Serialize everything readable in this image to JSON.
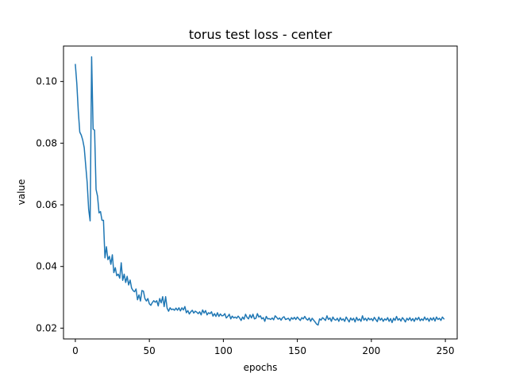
{
  "chart_data": {
    "type": "line",
    "title": "torus test loss - center",
    "xlabel": "epochs",
    "ylabel": "value",
    "xlim": [
      -8,
      258
    ],
    "ylim": [
      0.0165,
      0.1115
    ],
    "xticks": [
      0,
      50,
      100,
      150,
      200,
      250
    ],
    "yticks": [
      0.02,
      0.04,
      0.06,
      0.08,
      0.1
    ],
    "ytick_labels": [
      "0.02",
      "0.04",
      "0.06",
      "0.08",
      "0.10"
    ],
    "xtick_labels": [
      "0",
      "50",
      "100",
      "150",
      "200",
      "250"
    ],
    "grid": false,
    "line_color": "#1f77b4",
    "series": [
      {
        "values": [
          0.1055,
          0.0993,
          0.0903,
          0.0836,
          0.0826,
          0.081,
          0.0785,
          0.0728,
          0.0672,
          0.0585,
          0.0548,
          0.108,
          0.0846,
          0.0842,
          0.065,
          0.0628,
          0.0574,
          0.0578,
          0.055,
          0.055,
          0.0428,
          0.0464,
          0.0422,
          0.0433,
          0.0407,
          0.0438,
          0.038,
          0.0396,
          0.037,
          0.0375,
          0.0362,
          0.0412,
          0.0355,
          0.0375,
          0.0348,
          0.0368,
          0.034,
          0.0356,
          0.033,
          0.0322,
          0.0318,
          0.0327,
          0.0292,
          0.0308,
          0.0288,
          0.0322,
          0.032,
          0.0296,
          0.0288,
          0.0296,
          0.0279,
          0.0274,
          0.0283,
          0.0289,
          0.0284,
          0.0289,
          0.0272,
          0.0296,
          0.0282,
          0.0302,
          0.027,
          0.0302,
          0.0265,
          0.0255,
          0.0266,
          0.026,
          0.0262,
          0.0258,
          0.0265,
          0.0258,
          0.0266,
          0.0256,
          0.0266,
          0.0259,
          0.027,
          0.025,
          0.0257,
          0.0246,
          0.0253,
          0.0258,
          0.0249,
          0.0255,
          0.0252,
          0.0247,
          0.0253,
          0.0243,
          0.0259,
          0.0249,
          0.0257,
          0.0243,
          0.025,
          0.0247,
          0.0253,
          0.0239,
          0.0247,
          0.0238,
          0.025,
          0.0238,
          0.0246,
          0.024,
          0.0241,
          0.0247,
          0.0233,
          0.0238,
          0.0245,
          0.023,
          0.0239,
          0.0233,
          0.0236,
          0.0232,
          0.0239,
          0.0233,
          0.0225,
          0.0236,
          0.0229,
          0.0245,
          0.0235,
          0.023,
          0.0243,
          0.0233,
          0.0245,
          0.023,
          0.0232,
          0.0247,
          0.0236,
          0.024,
          0.023,
          0.0234,
          0.0222,
          0.0238,
          0.023,
          0.0231,
          0.0228,
          0.0233,
          0.0227,
          0.024,
          0.0235,
          0.0229,
          0.0233,
          0.0226,
          0.0234,
          0.0237,
          0.0228,
          0.023,
          0.0232,
          0.0224,
          0.0234,
          0.0229,
          0.0235,
          0.0228,
          0.0236,
          0.023,
          0.0225,
          0.0234,
          0.023,
          0.0238,
          0.023,
          0.0226,
          0.0233,
          0.0222,
          0.0232,
          0.0226,
          0.022,
          0.0213,
          0.021,
          0.023,
          0.0226,
          0.0234,
          0.023,
          0.0225,
          0.024,
          0.0228,
          0.0233,
          0.0222,
          0.0236,
          0.0228,
          0.0226,
          0.0232,
          0.0222,
          0.0234,
          0.0226,
          0.023,
          0.0222,
          0.0236,
          0.0228,
          0.022,
          0.0233,
          0.0226,
          0.0232,
          0.022,
          0.0235,
          0.0225,
          0.023,
          0.0222,
          0.024,
          0.0226,
          0.0232,
          0.0224,
          0.0233,
          0.0227,
          0.0231,
          0.0224,
          0.0235,
          0.0228,
          0.0221,
          0.0236,
          0.0226,
          0.0232,
          0.0222,
          0.023,
          0.0226,
          0.0234,
          0.0222,
          0.0231,
          0.0218,
          0.0232,
          0.0225,
          0.0238,
          0.0226,
          0.0231,
          0.0223,
          0.0234,
          0.0228,
          0.022,
          0.0232,
          0.0226,
          0.0234,
          0.0224,
          0.0231,
          0.0222,
          0.0233,
          0.0227,
          0.0235,
          0.0224,
          0.023,
          0.0225,
          0.0236,
          0.0227,
          0.0232,
          0.0222,
          0.0233,
          0.0226,
          0.0234,
          0.0223,
          0.0236,
          0.0228,
          0.0232,
          0.0225,
          0.0236,
          0.023
        ]
      }
    ]
  }
}
